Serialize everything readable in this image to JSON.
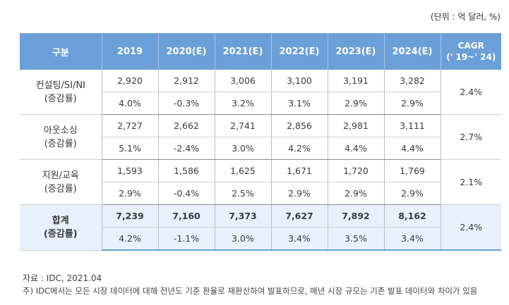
{
  "unit_note": "(단위 : 억 달러, %)",
  "headers": [
    "구분",
    "2019",
    "2020(E)",
    "2021(E)",
    "2022(E)",
    "2023(E)",
    "2024(E)"
  ],
  "cagr_header": [
    "CAGR",
    "(' 19~' 24)"
  ],
  "rows": [
    {
      "label1": "컨설팅/SI/NI",
      "label2": "(증감률)",
      "values": [
        "2,920",
        "2,912",
        "3,006",
        "3,100",
        "3,191",
        "3,282"
      ],
      "growth": [
        "4.0%",
        "-0.3%",
        "3.2%",
        "3.1%",
        "2.9%",
        "2.9%"
      ],
      "cagr": "2.4%"
    },
    {
      "label1": "아웃소싱",
      "label2": "(증감률)",
      "values": [
        "2,727",
        "2,662",
        "2,741",
        "2,856",
        "2,981",
        "3,111"
      ],
      "growth": [
        "5.1%",
        "-2.4%",
        "3.0%",
        "4.2%",
        "4.4%",
        "4.4%"
      ],
      "cagr": "2.7%"
    },
    {
      "label1": "지원/교육",
      "label2": "(증감률)",
      "values": [
        "1,593",
        "1,586",
        "1,625",
        "1,671",
        "1,720",
        "1,769"
      ],
      "growth": [
        "2.9%",
        "-0.4%",
        "2.5%",
        "2.9%",
        "2.9%",
        "2.9%"
      ],
      "cagr": "2.1%"
    },
    {
      "label1": "합계",
      "label2": "(증감률)",
      "values": [
        "7,239",
        "7,160",
        "7,373",
        "7,627",
        "7,892",
        "8,162"
      ],
      "growth": [
        "4.2%",
        "-1.1%",
        "3.0%",
        "3.4%",
        "3.5%",
        "3.4%"
      ],
      "cagr": "2.4%"
    }
  ],
  "source": "자료 : IDC, 2021.04",
  "note": "주) IDC에서는 모든 시장 데이터에 대해 전년도 기준 환율로 재환산하여 발표하므로, 매년 시장 규모는 기존 발표 데이터와 차이가 있음"
}
